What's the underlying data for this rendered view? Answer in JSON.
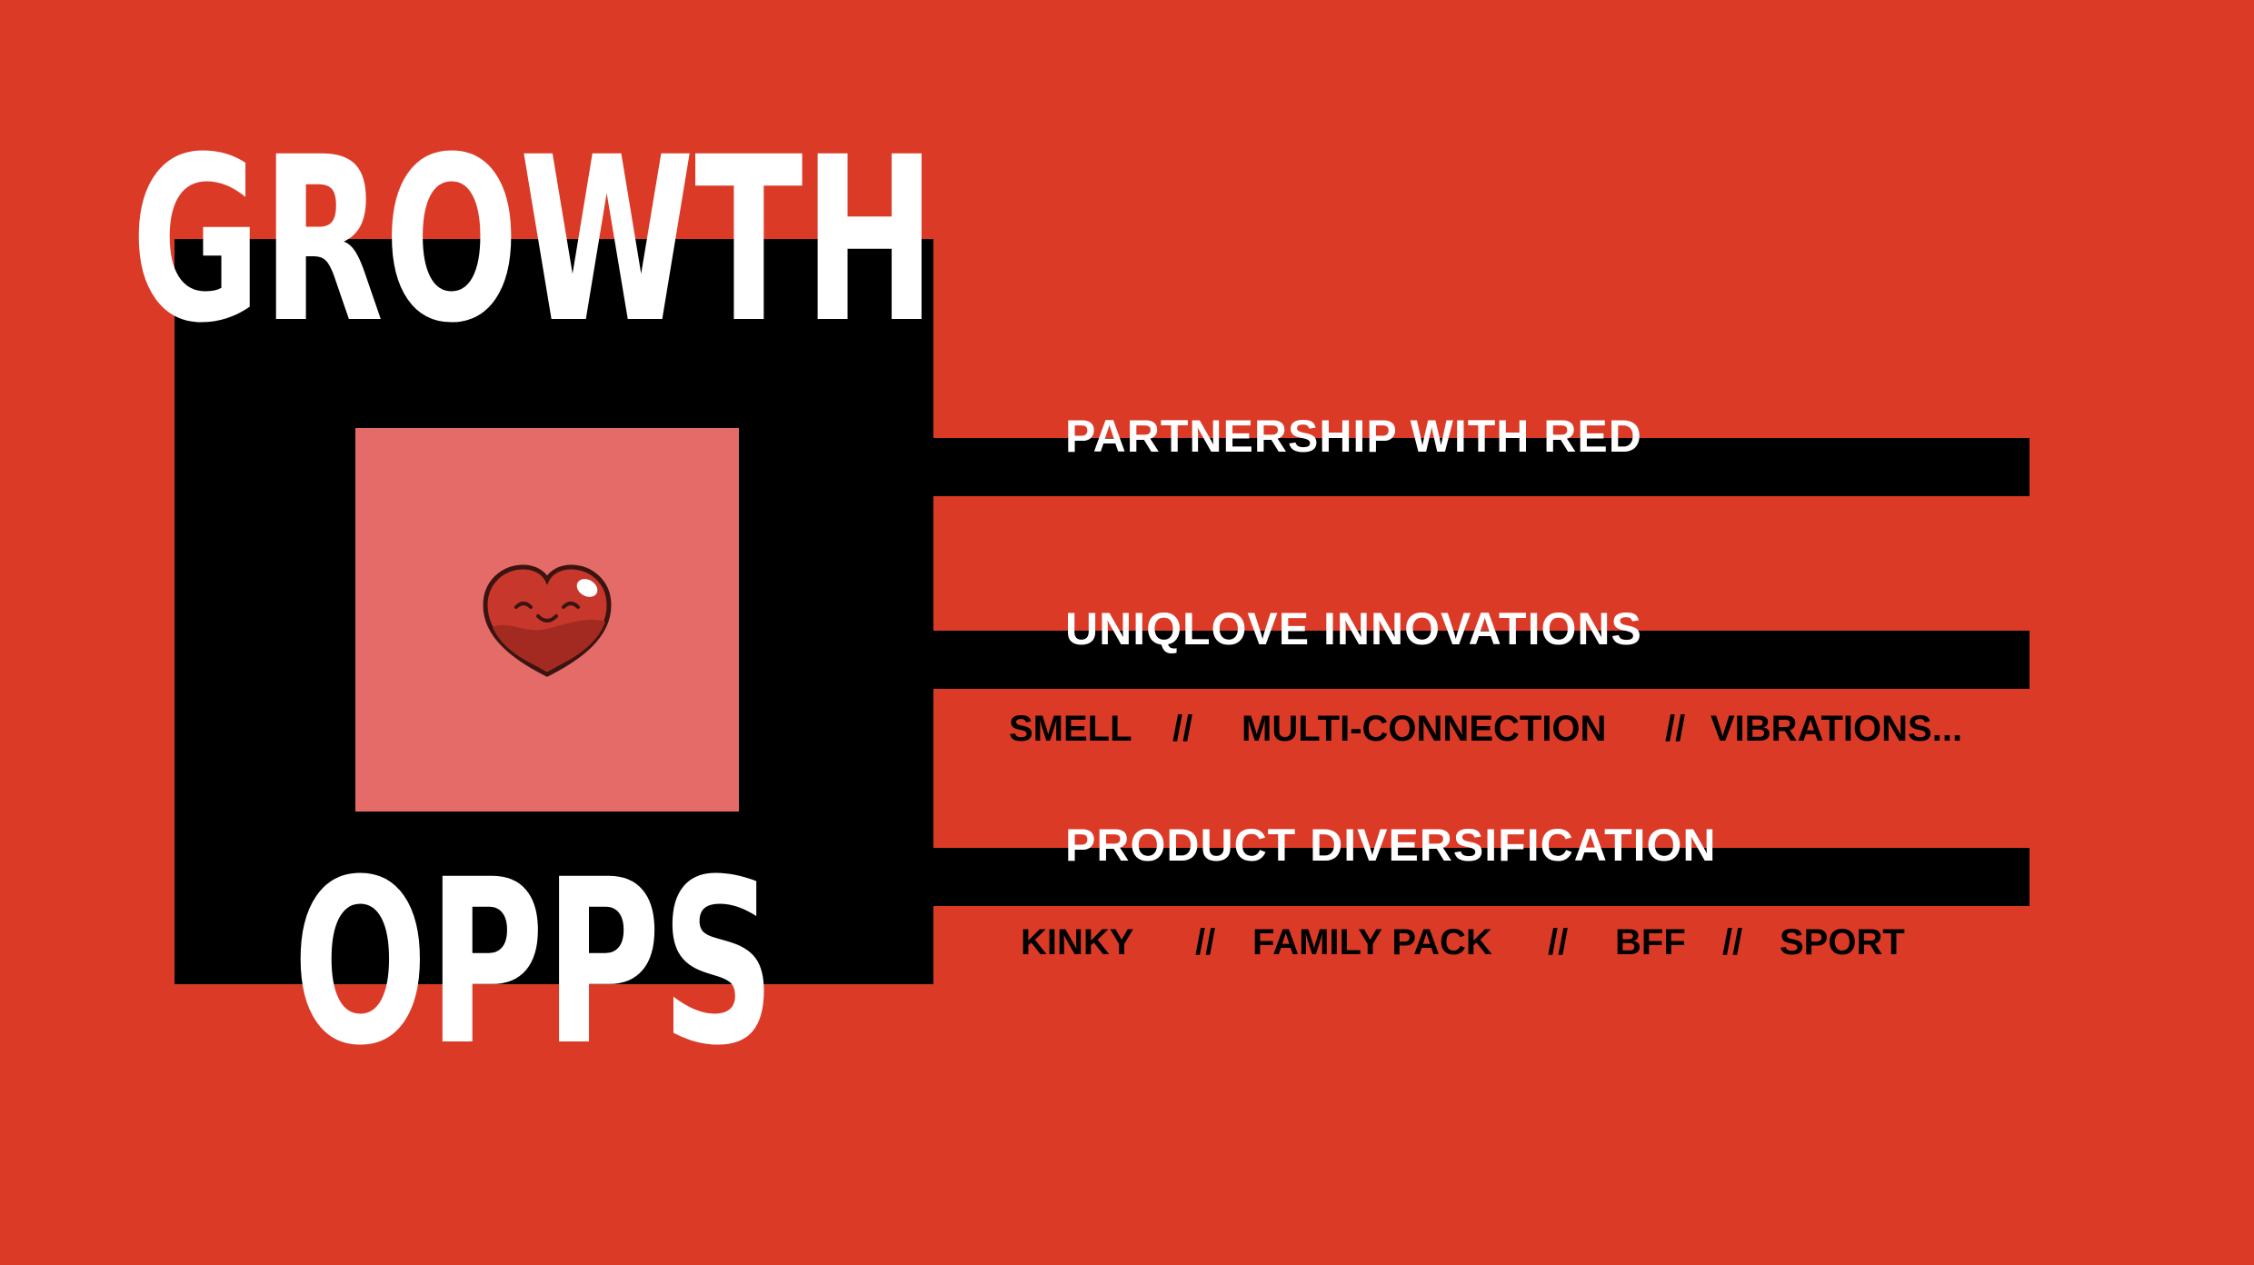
{
  "colors": {
    "background": "#DB3A27",
    "block": "#000000",
    "square": "#E46B68",
    "title_text": "#FFFFFF",
    "sub_text": "#000000"
  },
  "title": {
    "line1": "GROWTH",
    "line2": "OPPS"
  },
  "logo": {
    "icon": "smiling-heart-icon"
  },
  "opportunities": [
    {
      "heading": "PARTNERSHIP WITH RED",
      "items": [],
      "separators": []
    },
    {
      "heading": "UNIQLOVE INNOVATIONS",
      "items": [
        "SMELL",
        "MULTI-CONNECTION",
        "VIBRATIONS..."
      ],
      "separators": [
        "//",
        "//"
      ]
    },
    {
      "heading": "PRODUCT DIVERSIFICATION",
      "items": [
        "KINKY",
        "FAMILY PACK",
        "BFF",
        "SPORT"
      ],
      "separators": [
        "//",
        "//",
        "//"
      ]
    }
  ]
}
